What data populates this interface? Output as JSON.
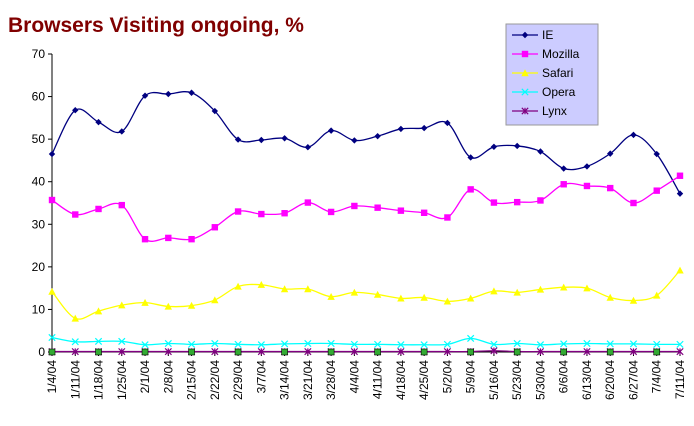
{
  "chart_data": {
    "type": "line",
    "title": "Browsers Visiting ongoing, %",
    "xlabel": "",
    "ylabel": "",
    "ylim": [
      0,
      70
    ],
    "yticks": [
      0,
      10,
      20,
      30,
      40,
      50,
      60,
      70
    ],
    "grid": false,
    "legend_position": "top-right",
    "categories": [
      "1/4/04",
      "1/11/04",
      "1/18/04",
      "1/25/04",
      "2/1/04",
      "2/8/04",
      "2/15/04",
      "2/22/04",
      "2/29/04",
      "3/7/04",
      "3/14/04",
      "3/21/04",
      "3/28/04",
      "4/4/04",
      "4/11/04",
      "4/18/04",
      "4/25/04",
      "5/2/04",
      "5/9/04",
      "5/16/04",
      "5/23/04",
      "5/30/04",
      "6/6/04",
      "6/13/04",
      "6/20/04",
      "6/27/04",
      "7/4/04",
      "7/11/04"
    ],
    "series": [
      {
        "name": "IE",
        "color": "#000080",
        "marker": "diamond",
        "values": [
          46.5,
          56.8,
          54.0,
          51.8,
          60.2,
          60.6,
          60.9,
          56.6,
          49.9,
          49.8,
          50.2,
          48.1,
          52.0,
          49.7,
          50.7,
          52.4,
          52.6,
          53.8,
          45.7,
          48.2,
          48.4,
          47.1,
          43.1,
          43.6,
          46.6,
          51.0,
          46.5,
          37.2
        ]
      },
      {
        "name": "Mozilla",
        "color": "#ff00ff",
        "marker": "square",
        "values": [
          35.7,
          32.3,
          33.6,
          34.5,
          26.5,
          26.8,
          26.5,
          29.3,
          33.0,
          32.4,
          32.6,
          35.1,
          32.9,
          34.3,
          33.9,
          33.2,
          32.7,
          31.6,
          38.2,
          35.1,
          35.2,
          35.6,
          39.4,
          39.0,
          38.5,
          35.0,
          37.9,
          41.4
        ]
      },
      {
        "name": "Safari",
        "color": "#ffff00",
        "marker": "triangle",
        "values": [
          14.2,
          7.9,
          9.6,
          11.0,
          11.6,
          10.7,
          10.9,
          12.2,
          15.4,
          15.8,
          14.8,
          14.8,
          13.0,
          14.0,
          13.5,
          12.6,
          12.8,
          11.9,
          12.6,
          14.3,
          14.0,
          14.7,
          15.2,
          15.0,
          12.8,
          12.1,
          13.3,
          19.2
        ]
      },
      {
        "name": "Opera",
        "color": "#00ffff",
        "marker": "x",
        "values": [
          3.4,
          2.4,
          2.5,
          2.5,
          1.7,
          2.0,
          1.8,
          2.0,
          1.8,
          1.7,
          1.9,
          2.0,
          2.0,
          1.8,
          1.8,
          1.7,
          1.7,
          1.8,
          3.2,
          1.8,
          2.0,
          1.7,
          1.9,
          2.0,
          1.9,
          1.9,
          1.8,
          1.8
        ]
      },
      {
        "name": "Lynx",
        "color": "#800080",
        "marker": "star",
        "values": [
          0.1,
          0.1,
          0.1,
          0.1,
          0.1,
          0.1,
          0.1,
          0.1,
          0.1,
          0.1,
          0.1,
          0.1,
          0.1,
          0.1,
          0.1,
          0.1,
          0.1,
          0.1,
          0.1,
          0.3,
          0.1,
          0.1,
          0.1,
          0.1,
          0.1,
          0.1,
          0.1,
          0.1
        ]
      }
    ]
  }
}
